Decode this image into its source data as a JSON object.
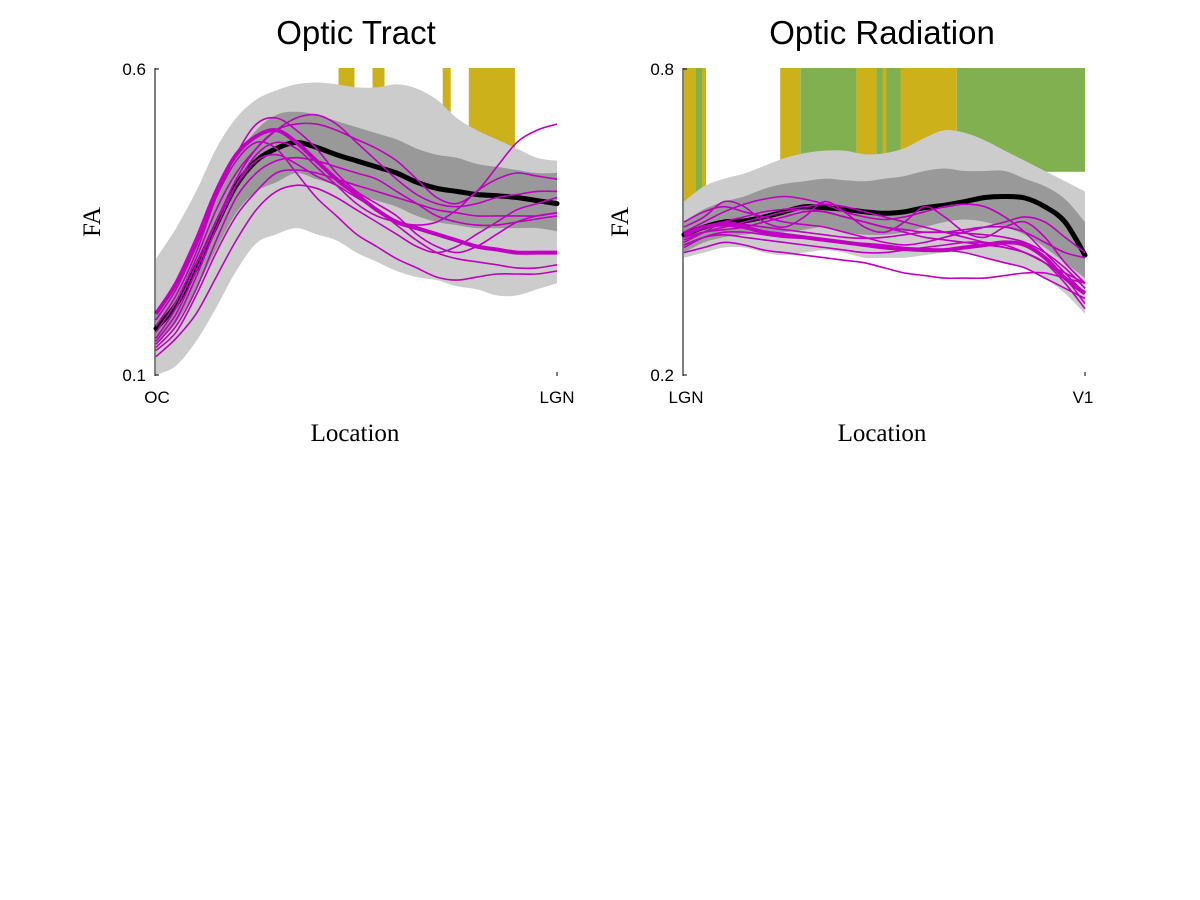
{
  "colors": {
    "outer_band": "#cccccc",
    "inner_band": "#999999",
    "mean_line": "#000000",
    "patient_lines": "#c000c0",
    "significance_a": "#ccb11b",
    "significance_b": "#80b050"
  },
  "chart_data": [
    {
      "type": "line",
      "title": "Optic Tract",
      "xlabel": "Location",
      "ylabel": "FA",
      "xlim": [
        0,
        100
      ],
      "ylim": [
        0.1,
        0.6
      ],
      "xtick_labels": [
        "OC",
        "LGN"
      ],
      "ytick_labels": [
        "0.1",
        "0.6"
      ],
      "grid": false,
      "legend": "none",
      "x": [
        0,
        5,
        10,
        15,
        20,
        25,
        30,
        35,
        40,
        45,
        50,
        55,
        60,
        65,
        70,
        75,
        80,
        85,
        90,
        95,
        100
      ],
      "mean": [
        0.176,
        0.215,
        0.275,
        0.345,
        0.41,
        0.45,
        0.47,
        0.48,
        0.472,
        0.46,
        0.45,
        0.44,
        0.43,
        0.415,
        0.405,
        0.4,
        0.395,
        0.393,
        0.39,
        0.385,
        0.38
      ],
      "inner_upper": [
        0.2,
        0.245,
        0.31,
        0.385,
        0.455,
        0.5,
        0.525,
        0.53,
        0.525,
        0.515,
        0.505,
        0.495,
        0.485,
        0.47,
        0.46,
        0.455,
        0.445,
        0.44,
        0.435,
        0.43,
        0.43
      ],
      "inner_lower": [
        0.15,
        0.185,
        0.24,
        0.305,
        0.365,
        0.4,
        0.415,
        0.43,
        0.42,
        0.41,
        0.395,
        0.385,
        0.375,
        0.36,
        0.35,
        0.345,
        0.34,
        0.34,
        0.34,
        0.34,
        0.335
      ],
      "outer_upper": [
        0.29,
        0.34,
        0.4,
        0.47,
        0.52,
        0.55,
        0.565,
        0.575,
        0.578,
        0.575,
        0.57,
        0.57,
        0.575,
        0.568,
        0.55,
        0.52,
        0.5,
        0.485,
        0.47,
        0.455,
        0.45
      ],
      "outer_lower": [
        0.1,
        0.115,
        0.155,
        0.21,
        0.27,
        0.315,
        0.33,
        0.34,
        0.33,
        0.32,
        0.3,
        0.285,
        0.27,
        0.26,
        0.255,
        0.245,
        0.24,
        0.23,
        0.23,
        0.24,
        0.25
      ],
      "significance": [
        {
          "start": 45.5,
          "end": 49.5,
          "color": "#ccb11b"
        },
        {
          "start": 54.0,
          "end": 57.0,
          "color": "#ccb11b"
        },
        {
          "start": 71.5,
          "end": 73.5,
          "color": "#ccb11b"
        },
        {
          "start": 78.0,
          "end": 89.5,
          "color": "#ccb11b"
        }
      ],
      "patients": [
        [
          0.16,
          0.21,
          0.28,
          0.35,
          0.41,
          0.45,
          0.46,
          0.445,
          0.425,
          0.41,
          0.39,
          0.37,
          0.345,
          0.32,
          0.3,
          0.29,
          0.285,
          0.28,
          0.275,
          0.275,
          0.28
        ],
        [
          0.14,
          0.17,
          0.23,
          0.3,
          0.36,
          0.4,
          0.43,
          0.435,
          0.43,
          0.42,
          0.41,
          0.4,
          0.39,
          0.38,
          0.37,
          0.365,
          0.36,
          0.36,
          0.36,
          0.36,
          0.365
        ],
        [
          0.15,
          0.19,
          0.26,
          0.34,
          0.41,
          0.46,
          0.48,
          0.47,
          0.44,
          0.41,
          0.38,
          0.36,
          0.35,
          0.345,
          0.35,
          0.37,
          0.4,
          0.42,
          0.43,
          0.425,
          0.42
        ],
        [
          0.18,
          0.23,
          0.3,
          0.39,
          0.46,
          0.51,
          0.52,
          0.5,
          0.47,
          0.43,
          0.4,
          0.38,
          0.36,
          0.33,
          0.31,
          0.3,
          0.31,
          0.33,
          0.35,
          0.36,
          0.365
        ],
        [
          0.13,
          0.16,
          0.2,
          0.26,
          0.32,
          0.37,
          0.4,
          0.41,
          0.405,
          0.39,
          0.37,
          0.35,
          0.33,
          0.31,
          0.3,
          0.31,
          0.33,
          0.35,
          0.37,
          0.38,
          0.39
        ],
        [
          0.17,
          0.22,
          0.29,
          0.37,
          0.43,
          0.47,
          0.5,
          0.52,
          0.525,
          0.51,
          0.48,
          0.45,
          0.42,
          0.395,
          0.38,
          0.375,
          0.38,
          0.39,
          0.395,
          0.4,
          0.4
        ],
        [
          0.19,
          0.24,
          0.31,
          0.39,
          0.45,
          0.48,
          0.47,
          0.43,
          0.39,
          0.36,
          0.33,
          0.31,
          0.29,
          0.275,
          0.26,
          0.255,
          0.26,
          0.265,
          0.265,
          0.265,
          0.27
        ],
        [
          0.155,
          0.2,
          0.27,
          0.35,
          0.42,
          0.47,
          0.5,
          0.51,
          0.51,
          0.5,
          0.485,
          0.47,
          0.45,
          0.42,
          0.39,
          0.38,
          0.4,
          0.44,
          0.48,
          0.5,
          0.51
        ],
        [
          0.145,
          0.18,
          0.24,
          0.32,
          0.39,
          0.43,
          0.45,
          0.455,
          0.45,
          0.44,
          0.43,
          0.42,
          0.4,
          0.38,
          0.36,
          0.35,
          0.345,
          0.345,
          0.35,
          0.355,
          0.36
        ],
        [
          0.2,
          0.25,
          0.32,
          0.4,
          0.46,
          0.49,
          0.5,
          0.48,
          0.45,
          0.42,
          0.395,
          0.37,
          0.35,
          0.34,
          0.33,
          0.32,
          0.31,
          0.305,
          0.3,
          0.3,
          0.3
        ]
      ]
    },
    {
      "type": "line",
      "title": "Optic Radiation",
      "xlabel": "Location",
      "ylabel": "FA",
      "xlim": [
        0,
        100
      ],
      "ylim": [
        0.2,
        0.8
      ],
      "xtick_labels": [
        "LGN",
        "V1"
      ],
      "ytick_labels": [
        "0.2",
        "0.8"
      ],
      "grid": false,
      "legend": "none",
      "x": [
        0,
        5,
        10,
        15,
        20,
        25,
        30,
        35,
        40,
        45,
        50,
        55,
        60,
        65,
        70,
        75,
        80,
        85,
        90,
        95,
        100
      ],
      "mean": [
        0.475,
        0.49,
        0.5,
        0.502,
        0.51,
        0.52,
        0.53,
        0.528,
        0.525,
        0.52,
        0.517,
        0.52,
        0.528,
        0.533,
        0.54,
        0.548,
        0.55,
        0.547,
        0.53,
        0.5,
        0.435
      ],
      "inner_upper": [
        0.5,
        0.525,
        0.54,
        0.55,
        0.565,
        0.575,
        0.58,
        0.585,
        0.582,
        0.58,
        0.585,
        0.59,
        0.6,
        0.605,
        0.6,
        0.6,
        0.6,
        0.585,
        0.57,
        0.545,
        0.5
      ],
      "inner_lower": [
        0.44,
        0.46,
        0.47,
        0.475,
        0.48,
        0.48,
        0.485,
        0.49,
        0.48,
        0.475,
        0.475,
        0.48,
        0.49,
        0.5,
        0.505,
        0.5,
        0.49,
        0.475,
        0.45,
        0.42,
        0.39
      ],
      "outer_upper": [
        0.54,
        0.57,
        0.585,
        0.595,
        0.61,
        0.625,
        0.635,
        0.64,
        0.64,
        0.633,
        0.635,
        0.645,
        0.665,
        0.68,
        0.675,
        0.66,
        0.64,
        0.62,
        0.6,
        0.58,
        0.56
      ],
      "outer_lower": [
        0.43,
        0.44,
        0.45,
        0.45,
        0.44,
        0.435,
        0.44,
        0.445,
        0.44,
        0.43,
        0.43,
        0.43,
        0.435,
        0.44,
        0.44,
        0.43,
        0.42,
        0.41,
        0.39,
        0.36,
        0.32
      ],
      "significance": [
        {
          "start": 0,
          "end": 3,
          "color": "#ccb11b"
        },
        {
          "start": 3,
          "end": 4.5,
          "color": "#80b050"
        },
        {
          "start": 4.5,
          "end": 5.5,
          "color": "#ccb11b"
        },
        {
          "start": 24,
          "end": 29,
          "color": "#ccb11b"
        },
        {
          "start": 29,
          "end": 43,
          "color": "#80b050"
        },
        {
          "start": 43,
          "end": 48,
          "color": "#ccb11b"
        },
        {
          "start": 48,
          "end": 49.5,
          "color": "#80b050"
        },
        {
          "start": 49.5,
          "end": 50.5,
          "color": "#ccb11b"
        },
        {
          "start": 50.5,
          "end": 54,
          "color": "#80b050"
        },
        {
          "start": 54,
          "end": 68,
          "color": "#ccb11b"
        },
        {
          "start": 68,
          "end": 100,
          "color": "#80b050"
        }
      ],
      "patients": [
        [
          0.47,
          0.49,
          0.5,
          0.495,
          0.49,
          0.485,
          0.48,
          0.475,
          0.47,
          0.468,
          0.47,
          0.475,
          0.48,
          0.48,
          0.478,
          0.475,
          0.47,
          0.46,
          0.44,
          0.41,
          0.37
        ],
        [
          0.455,
          0.47,
          0.475,
          0.47,
          0.465,
          0.46,
          0.455,
          0.45,
          0.445,
          0.44,
          0.44,
          0.445,
          0.45,
          0.455,
          0.46,
          0.46,
          0.455,
          0.44,
          0.42,
          0.4,
          0.38
        ],
        [
          0.49,
          0.51,
          0.54,
          0.53,
          0.5,
          0.49,
          0.51,
          0.54,
          0.52,
          0.49,
          0.48,
          0.5,
          0.53,
          0.51,
          0.48,
          0.47,
          0.49,
          0.5,
          0.47,
          0.42,
          0.38
        ],
        [
          0.465,
          0.48,
          0.49,
          0.5,
          0.51,
          0.52,
          0.525,
          0.52,
          0.51,
          0.5,
          0.49,
          0.48,
          0.47,
          0.465,
          0.46,
          0.455,
          0.45,
          0.44,
          0.42,
          0.39,
          0.34
        ],
        [
          0.44,
          0.45,
          0.46,
          0.455,
          0.445,
          0.44,
          0.435,
          0.43,
          0.425,
          0.42,
          0.41,
          0.4,
          0.395,
          0.39,
          0.39,
          0.39,
          0.395,
          0.4,
          0.4,
          0.39,
          0.38
        ],
        [
          0.48,
          0.5,
          0.52,
          0.535,
          0.545,
          0.55,
          0.545,
          0.535,
          0.52,
          0.51,
          0.505,
          0.51,
          0.52,
          0.53,
          0.535,
          0.53,
          0.51,
          0.48,
          0.44,
          0.4,
          0.36
        ],
        [
          0.47,
          0.48,
          0.485,
          0.49,
          0.5,
          0.51,
          0.52,
          0.52,
          0.51,
          0.5,
          0.49,
          0.485,
          0.48,
          0.48,
          0.485,
          0.49,
          0.49,
          0.48,
          0.46,
          0.44,
          0.43
        ],
        [
          0.5,
          0.52,
          0.53,
          0.52,
          0.51,
          0.5,
          0.495,
          0.49,
          0.48,
          0.47,
          0.46,
          0.455,
          0.46,
          0.47,
          0.48,
          0.49,
          0.5,
          0.51,
          0.5,
          0.47,
          0.44
        ],
        [
          0.45,
          0.47,
          0.48,
          0.48,
          0.475,
          0.47,
          0.468,
          0.465,
          0.46,
          0.458,
          0.455,
          0.45,
          0.448,
          0.445,
          0.44,
          0.43,
          0.42,
          0.41,
          0.39,
          0.37,
          0.35
        ],
        [
          0.46,
          0.48,
          0.5,
          0.51,
          0.52,
          0.525,
          0.53,
          0.535,
          0.53,
          0.52,
          0.51,
          0.5,
          0.49,
          0.48,
          0.47,
          0.46,
          0.45,
          0.44,
          0.42,
          0.38,
          0.33
        ],
        [
          0.475,
          0.49,
          0.495,
          0.49,
          0.48,
          0.475,
          0.47,
          0.465,
          0.46,
          0.455,
          0.45,
          0.447,
          0.445,
          0.445,
          0.45,
          0.455,
          0.46,
          0.455,
          0.43,
          0.39,
          0.36
        ]
      ]
    }
  ]
}
